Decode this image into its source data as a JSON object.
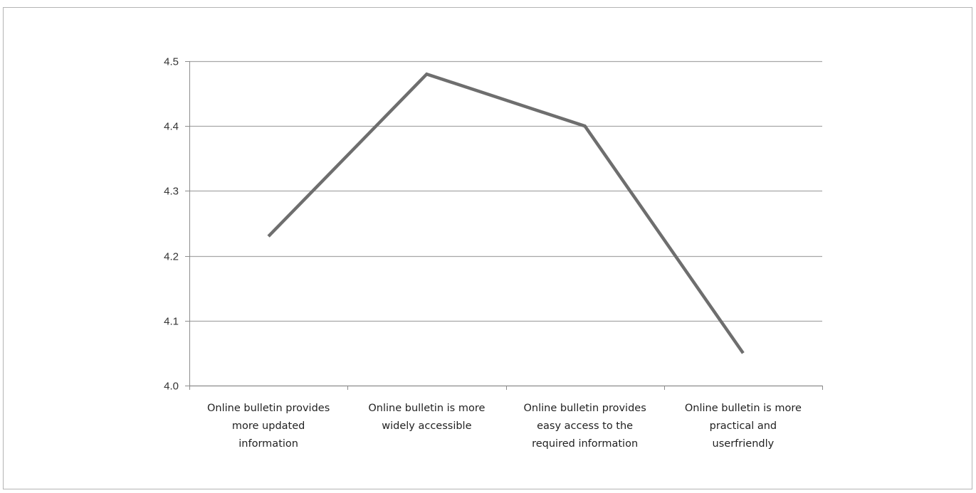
{
  "chart_data": {
    "type": "line",
    "categories": [
      [
        "Online bulletin provides",
        "more updated",
        "information"
      ],
      [
        "Online bulletin is more",
        "widely accessible"
      ],
      [
        "Online bulletin provides",
        "easy access to the",
        "required information"
      ],
      [
        "Online bulletin is more",
        "practical and",
        "userfriendly"
      ]
    ],
    "series": [
      {
        "values": [
          4.23,
          4.48,
          4.4,
          4.05
        ]
      }
    ],
    "yticks": [
      "4.0",
      "4.1",
      "4.2",
      "4.3",
      "4.4",
      "4.5"
    ],
    "ylim": [
      4.0,
      4.5
    ],
    "grid": true,
    "legend": "none",
    "colors": {
      "line": "#6e6e6e",
      "grid": "#a6a6a6",
      "axis": "#8c8c8c"
    }
  }
}
